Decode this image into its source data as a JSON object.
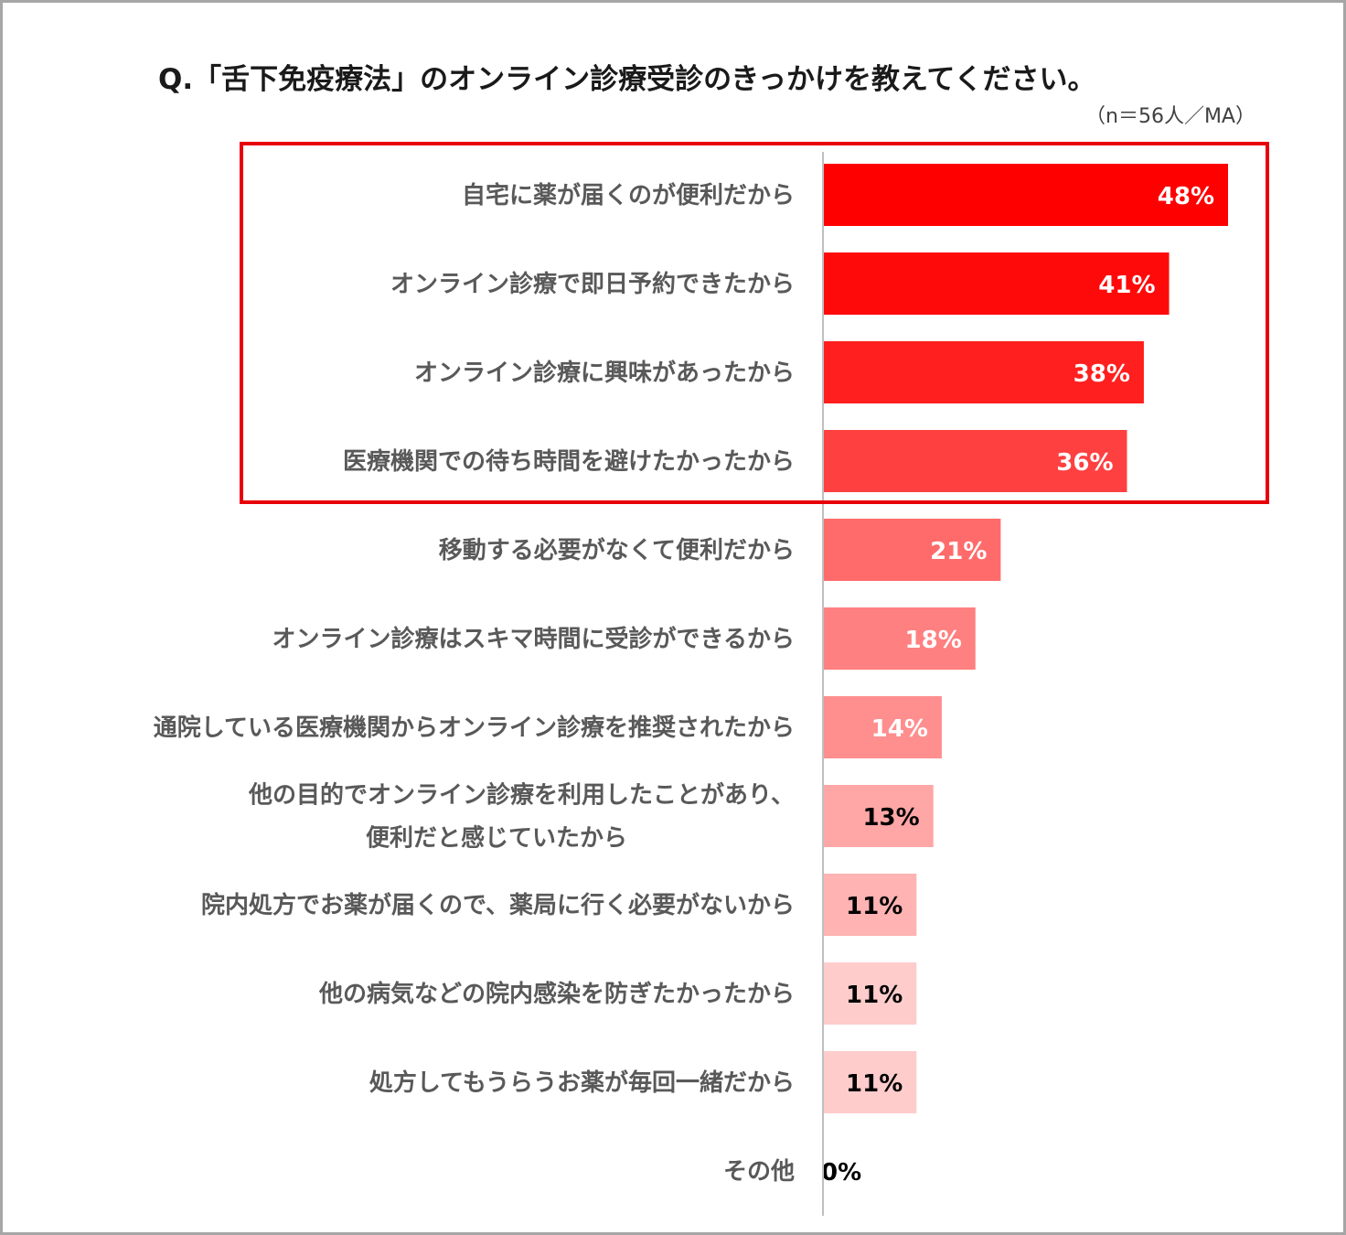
{
  "title": "Q.「舌下免疫療法」のオンライン診療受診のきっかけを教えてください。",
  "note": "（n＝56人／MA）",
  "colors": {
    "highlight_box": "#e8000b",
    "axis_line": "#bfbfbf",
    "bar_colors": [
      "#ff0000",
      "#ff0a0a",
      "#ff1f1f",
      "#ff4040",
      "#ff6b6b",
      "#ff8080",
      "#ff8e8e",
      "#ffa6a6",
      "#ffb3b3",
      "#ffcccc",
      "#ffcccc",
      "#f7f7f7"
    ],
    "value_label_colors": [
      "#ffffff",
      "#ffffff",
      "#ffffff",
      "#ffffff",
      "#ffffff",
      "#ffffff",
      "#ffffff",
      "#000000",
      "#000000",
      "#000000",
      "#000000",
      "#000000"
    ]
  },
  "chart_data": {
    "type": "bar",
    "orientation": "horizontal",
    "categories": [
      [
        "自宅に薬が届くのが便利だから"
      ],
      [
        "オンライン診療で即日予約できたから"
      ],
      [
        "オンライン診療に興味があったから"
      ],
      [
        "医療機関での待ち時間を避けたかったから"
      ],
      [
        "移動する必要がなくて便利だから"
      ],
      [
        "オンライン診療はスキマ時間に受診ができるから"
      ],
      [
        "通院している医療機関からオンライン診療を推奨されたから"
      ],
      [
        "他の目的でオンライン診療を利用したことがあり、",
        "便利だと感じていたから"
      ],
      [
        "院内処方でお薬が届くので、薬局に行く必要がないから"
      ],
      [
        "他の病気などの院内感染を防ぎたかったから"
      ],
      [
        "処方してもうらうお薬が毎回一緒だから"
      ],
      [
        "その他"
      ]
    ],
    "values": [
      48,
      41,
      38,
      36,
      21,
      18,
      14,
      13,
      11,
      11,
      11,
      0
    ],
    "value_labels": [
      "48%",
      "41%",
      "38%",
      "36%",
      "21%",
      "18%",
      "14%",
      "13%",
      "11%",
      "11%",
      "11%",
      "0%"
    ],
    "unit": "%",
    "xlim": [
      0,
      52
    ],
    "grid": false,
    "legend": "none",
    "highlighted_categories": [
      0,
      1,
      2,
      3
    ]
  }
}
